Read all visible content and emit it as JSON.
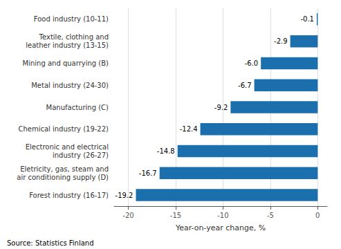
{
  "chart_data": {
    "type": "bar",
    "orientation": "horizontal",
    "categories": [
      "Forest industry (16-17)",
      "Eletricity, gas, steam and\nair conditioning supply (D)",
      "Electronic and electrical\nindustry (26-27)",
      "Chemical industry (19-22)",
      "Manufacturing (C)",
      "Metal industry (24-30)",
      "Mining and quarrying (B)",
      "Textile, clothing and\nleather industry (13-15)",
      "Food industry (10-11)"
    ],
    "values": [
      -19.2,
      -16.7,
      -14.8,
      -12.4,
      -9.2,
      -6.7,
      -6.0,
      -2.9,
      -0.1
    ],
    "value_labels": [
      "-19.2",
      "-16.7",
      "-14.8",
      "-12.4",
      "-9.2",
      "-6.7",
      "-6.0",
      "-2.9",
      "-0.1"
    ],
    "data_labels": true,
    "color": "#1B6FAD",
    "xlabel": "Year-on-year change, %",
    "xlim": [
      -21.5,
      1.0
    ],
    "xticks": [
      -20,
      -15,
      -10,
      -5,
      0
    ],
    "grid": true,
    "annotations": [
      "Source: Statistics Finland"
    ]
  }
}
